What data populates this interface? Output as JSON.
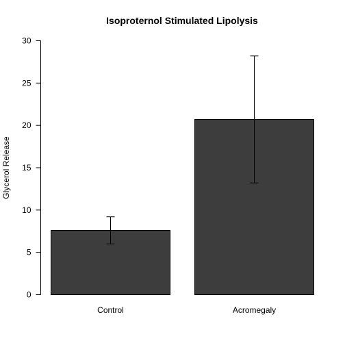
{
  "chart_data": {
    "type": "bar",
    "title": "Isoproternol Stimulated Lipolysis",
    "xlabel": "",
    "ylabel": "Glycerol Release",
    "categories": [
      "Control",
      "Acromegaly"
    ],
    "values": [
      7.6,
      20.7
    ],
    "error_low": [
      6.0,
      13.2
    ],
    "error_high": [
      9.2,
      28.2
    ],
    "ylim": [
      0,
      30
    ],
    "yticks": [
      0,
      5,
      10,
      15,
      20,
      25,
      30
    ],
    "bar_color": "#3d3d3d",
    "grid": false,
    "legend": "none"
  }
}
